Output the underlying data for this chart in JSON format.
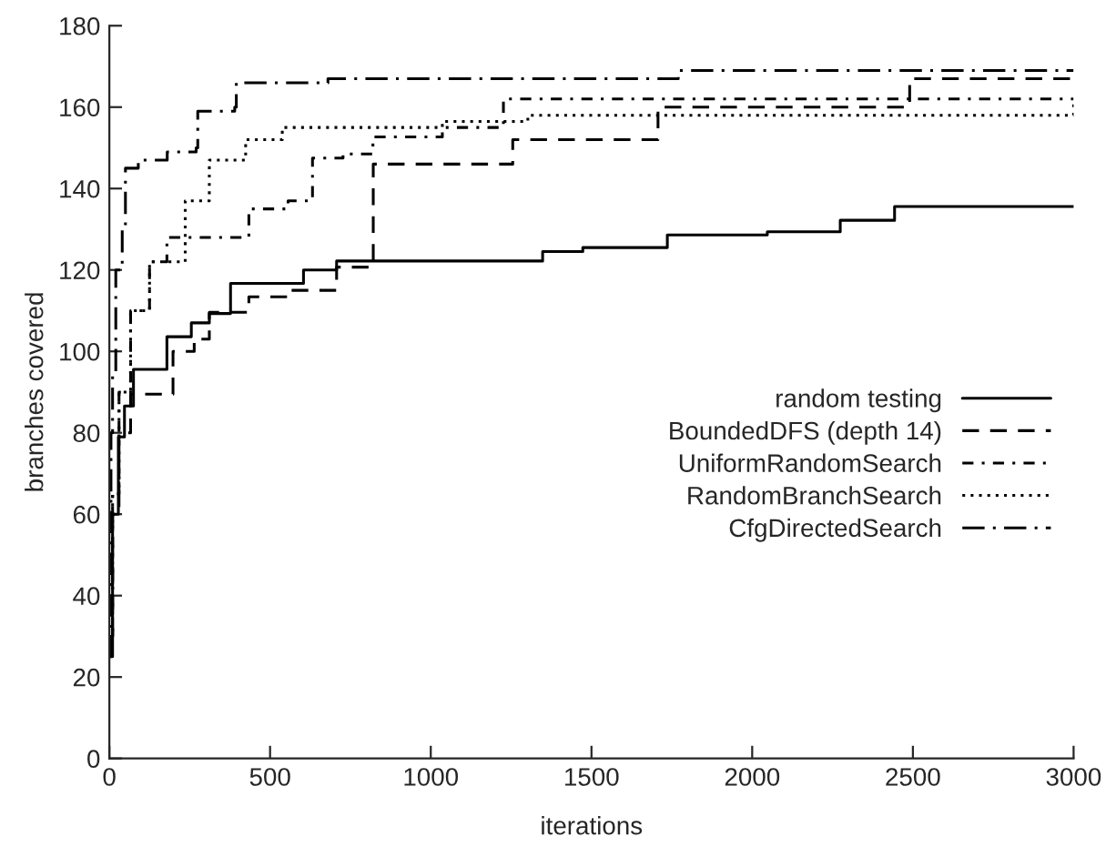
{
  "chart_data": {
    "type": "step",
    "xlabel": "iterations",
    "ylabel": "branches covered",
    "xlim": [
      0,
      3000
    ],
    "ylim": [
      0,
      180
    ],
    "xticks": [
      0,
      500,
      1000,
      1500,
      2000,
      2500,
      3000
    ],
    "yticks": [
      0,
      20,
      40,
      60,
      80,
      100,
      120,
      140,
      160,
      180
    ],
    "grid": false,
    "legend": "right",
    "marker": "none",
    "series": [
      {
        "name": "random testing",
        "color": "#000000",
        "line_style": "solid",
        "x": [
          0,
          10,
          28,
          47,
          75,
          179,
          255,
          311,
          377,
          604,
          707,
          1348,
          1473,
          1736,
          2047,
          2274,
          2443,
          3000
        ],
        "values": [
          25,
          60,
          79,
          86.6,
          95.6,
          103.6,
          107,
          109.3,
          116.7,
          120,
          122.2,
          124.5,
          125.5,
          128.6,
          129.4,
          132.2,
          135.6,
          135.6
        ]
      },
      {
        "name": "BoundedDFS (depth 14)",
        "color": "#000000",
        "line_style": "dashed",
        "x": [
          0,
          10,
          30,
          66,
          198,
          264,
          311,
          434,
          556,
          707,
          821,
          1255,
          1707,
          2490,
          3000
        ],
        "values": [
          30,
          60,
          80,
          89.5,
          100,
          103,
          109.6,
          113.4,
          115,
          120.7,
          146,
          152,
          160,
          167,
          167
        ]
      },
      {
        "name": "UniformRandomSearch",
        "color": "#000000",
        "line_style": "dashdotdot",
        "x": [
          0,
          10,
          30,
          66,
          125,
          179,
          434,
          556,
          632,
          727,
          820,
          1036,
          1226,
          3000
        ],
        "values": [
          30,
          65,
          90,
          110,
          122,
          128,
          135,
          137,
          147.5,
          148.5,
          152.7,
          155,
          162,
          162
        ]
      },
      {
        "name": "RandomBranchSearch",
        "color": "#000000",
        "line_style": "dotted",
        "x": [
          0,
          10,
          30,
          66,
          125,
          236,
          311,
          424,
          538,
          1036,
          1302,
          2905,
          3000
        ],
        "values": [
          30,
          65,
          90,
          110,
          122,
          137,
          147,
          152,
          155,
          156.5,
          158,
          158,
          161
        ]
      },
      {
        "name": "CfgDirectedSearch",
        "color": "#000000",
        "line_style": "dashdot",
        "x": [
          0,
          5,
          10,
          20,
          40,
          50,
          90,
          180,
          270,
          275,
          390,
          395,
          670,
          680,
          1765,
          1770,
          3000
        ],
        "values": [
          25,
          80,
          95,
          120,
          130,
          145,
          147,
          149,
          150,
          159,
          160,
          166,
          166,
          167,
          167,
          169,
          169
        ]
      }
    ]
  }
}
